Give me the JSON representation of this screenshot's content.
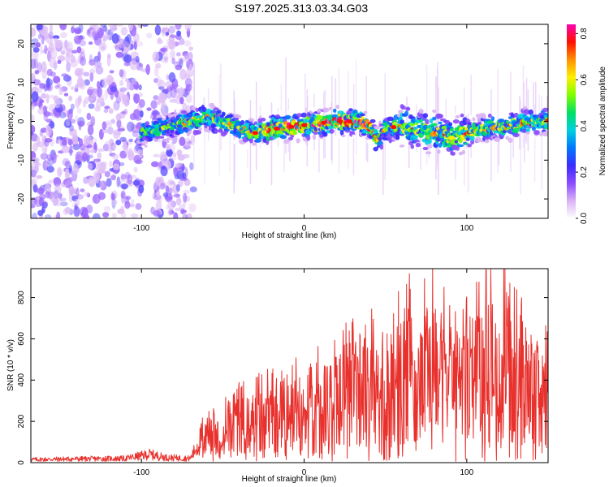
{
  "title": "S197.2025.313.03.34.G03",
  "colors": {
    "snr_line": "#e8302c",
    "colormap": [
      "#ffffff",
      "#d9b3f5",
      "#8a4bff",
      "#3a2cff",
      "#0078ff",
      "#00d0e0",
      "#00e060",
      "#80ff00",
      "#ffee00",
      "#ff9000",
      "#ff1000",
      "#ff00b0"
    ]
  },
  "chart_data": [
    {
      "type": "heatmap",
      "name": "spectrogram",
      "xlabel": "Height of straight line (km)",
      "ylabel": "Frequency (Hz)",
      "xlim": [
        -168,
        150
      ],
      "ylim": [
        -25,
        25
      ],
      "xticks": [
        -100,
        0,
        100
      ],
      "xtick_labels": [
        "-100",
        "0",
        "100"
      ],
      "yticks": [
        -20,
        -10,
        0,
        10,
        20
      ],
      "ytick_labels": [
        "-20",
        "-10",
        "0",
        "10",
        "20"
      ],
      "colorbar": {
        "label": "Normalized spectral amplitude",
        "range": [
          0.0,
          0.84
        ],
        "ticks": [
          0.0,
          0.2,
          0.4,
          0.6,
          0.8
        ],
        "tick_labels": [
          "0.0",
          "0.2",
          "0.4",
          "0.6",
          "0.8"
        ]
      },
      "centerline": {
        "heights_km": [
          -100,
          -90,
          -80,
          -70,
          -60,
          -50,
          -40,
          -30,
          -20,
          -10,
          0,
          10,
          20,
          30,
          40,
          45,
          50,
          60,
          70,
          80,
          90,
          100,
          110,
          120,
          130,
          140,
          150
        ],
        "frequency_hz": [
          -3,
          -2,
          -1,
          0,
          1,
          0,
          -2,
          -3,
          -2,
          -1.5,
          -1,
          -0.5,
          0,
          0,
          -1,
          -5,
          -2,
          -1,
          -2,
          -3,
          -4,
          -3,
          -2,
          -1.5,
          -1,
          0,
          0
        ]
      },
      "peak_amplitude": 0.84
    },
    {
      "type": "line",
      "name": "snr",
      "xlabel": "Height of straight line (km)",
      "ylabel": "SNR (10 * v/v)",
      "xlim": [
        -168,
        150
      ],
      "ylim": [
        0,
        940
      ],
      "xticks": [
        -100,
        0,
        100
      ],
      "xtick_labels": [
        "-100",
        "0",
        "100"
      ],
      "yticks": [
        0,
        200,
        400,
        600,
        800
      ],
      "ytick_labels": [
        "0",
        "200",
        "400",
        "600",
        "800"
      ],
      "series": [
        {
          "name": "SNR",
          "x": [
            -168,
            -140,
            -110,
            -95,
            -85,
            -70,
            -60,
            -55,
            -50,
            -40,
            -30,
            -20,
            -10,
            0,
            10,
            20,
            25,
            30,
            40,
            45,
            50,
            55,
            60,
            65,
            70,
            75,
            80,
            85,
            90,
            95,
            100,
            105,
            110,
            115,
            120,
            125,
            130,
            135,
            140,
            145,
            150
          ],
          "values": [
            15,
            18,
            20,
            40,
            25,
            20,
            160,
            150,
            180,
            220,
            240,
            260,
            280,
            300,
            320,
            380,
            420,
            430,
            450,
            350,
            380,
            450,
            500,
            520,
            540,
            560,
            540,
            480,
            470,
            460,
            480,
            500,
            520,
            560,
            550,
            520,
            480,
            450,
            420,
            400,
            380
          ]
        }
      ],
      "max_value": 940
    }
  ]
}
